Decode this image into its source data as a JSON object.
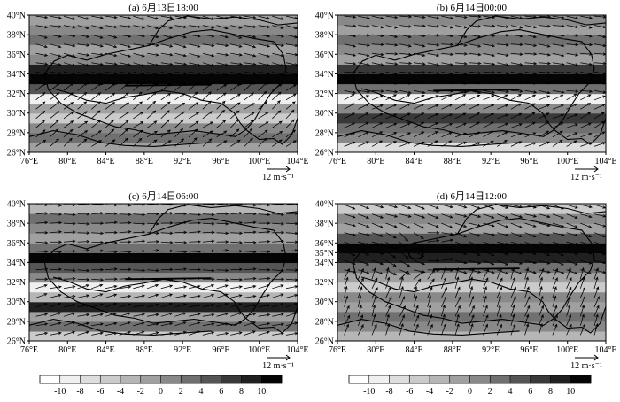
{
  "chart_data": [
    {
      "type": "heatmap",
      "panel": "a",
      "title": "(a) 6月13日18:00",
      "x_ticks": [
        "76°E",
        "80°E",
        "84°E",
        "88°E",
        "92°E",
        "96°E",
        "100°E",
        "104°E"
      ],
      "y_ticks": [
        "26°N",
        "28°N",
        "30°N",
        "32°N",
        "34°N",
        "36°N",
        "38°N",
        "40°N"
      ],
      "xlim": [
        76,
        104
      ],
      "ylim": [
        26,
        40
      ],
      "reference_vector": {
        "label": "12 m·s⁻¹",
        "value": 12
      },
      "rows": [
        {
          "lat": 26.5,
          "value": -2
        },
        {
          "lat": 27.5,
          "value": 2
        },
        {
          "lat": 28.5,
          "value": 0
        },
        {
          "lat": 29.5,
          "value": -6
        },
        {
          "lat": 30.5,
          "value": -2
        },
        {
          "lat": 31.5,
          "value": -10
        },
        {
          "lat": 32.5,
          "value": 4
        },
        {
          "lat": 33.5,
          "value": 10
        },
        {
          "lat": 34.5,
          "value": 8
        },
        {
          "lat": 35.5,
          "value": 0
        },
        {
          "lat": 36.5,
          "value": -2
        },
        {
          "lat": 37.5,
          "value": 2
        },
        {
          "lat": 38.5,
          "value": 0
        },
        {
          "lat": 39.5,
          "value": -2
        }
      ],
      "wind": {
        "north_u": 1.0,
        "north_v": -0.22,
        "south_u": 0.7,
        "south_v": 0.55,
        "split_lat": 32.5
      }
    },
    {
      "type": "heatmap",
      "panel": "b",
      "title": "(b) 6月14日00:00",
      "x_ticks": [
        "76°E",
        "80°E",
        "84°E",
        "88°E",
        "92°E",
        "96°E",
        "100°E",
        "104°E"
      ],
      "y_ticks": [
        "26°N",
        "28°N",
        "30°N",
        "32°N",
        "34°N",
        "36°N",
        "38°N",
        "40°N"
      ],
      "xlim": [
        76,
        104
      ],
      "ylim": [
        26,
        40
      ],
      "reference_vector": {
        "label": "12 m·s⁻¹",
        "value": 12
      },
      "rows": [
        {
          "lat": 26.5,
          "value": -8
        },
        {
          "lat": 27.5,
          "value": 0
        },
        {
          "lat": 28.5,
          "value": 2
        },
        {
          "lat": 29.5,
          "value": 6
        },
        {
          "lat": 30.5,
          "value": 0
        },
        {
          "lat": 31.5,
          "value": -10
        },
        {
          "lat": 32.5,
          "value": 2
        },
        {
          "lat": 33.5,
          "value": 10
        },
        {
          "lat": 34.5,
          "value": 6
        },
        {
          "lat": 35.5,
          "value": -2
        },
        {
          "lat": 36.5,
          "value": 0
        },
        {
          "lat": 37.5,
          "value": 2
        },
        {
          "lat": 38.5,
          "value": -2
        },
        {
          "lat": 39.5,
          "value": 0
        }
      ],
      "wind": {
        "north_u": 1.0,
        "north_v": -0.15,
        "south_u": 0.85,
        "south_v": 0.4,
        "split_lat": 32.0
      }
    },
    {
      "type": "heatmap",
      "panel": "c",
      "title": "(c) 6月14日06:00",
      "x_ticks": [
        "76°E",
        "80°E",
        "84°E",
        "88°E",
        "92°E",
        "96°E",
        "100°E",
        "104°E"
      ],
      "y_ticks": [
        "26°N",
        "28°N",
        "30°N",
        "32°N",
        "34°N",
        "36°N",
        "38°N",
        "40°N"
      ],
      "xlim": [
        76,
        104
      ],
      "ylim": [
        26,
        40
      ],
      "reference_vector": {
        "label": "12 m·s⁻¹",
        "value": 12
      },
      "rows": [
        {
          "lat": 26.5,
          "value": -6
        },
        {
          "lat": 27.5,
          "value": 2
        },
        {
          "lat": 28.5,
          "value": -2
        },
        {
          "lat": 29.5,
          "value": 8
        },
        {
          "lat": 30.5,
          "value": -4
        },
        {
          "lat": 31.5,
          "value": -10
        },
        {
          "lat": 32.5,
          "value": 0
        },
        {
          "lat": 33.5,
          "value": 4
        },
        {
          "lat": 34.5,
          "value": 10
        },
        {
          "lat": 35.5,
          "value": 2
        },
        {
          "lat": 36.5,
          "value": -2
        },
        {
          "lat": 37.5,
          "value": 0
        },
        {
          "lat": 38.5,
          "value": 2
        },
        {
          "lat": 39.5,
          "value": -4
        }
      ],
      "wind": {
        "north_u": 1.0,
        "north_v": 0.0,
        "south_u": 1.0,
        "south_v": 0.25,
        "split_lat": 32.0
      }
    },
    {
      "type": "heatmap",
      "panel": "d",
      "title": "(d) 6月14日12:00",
      "x_ticks": [
        "76°E",
        "80°E",
        "84°E",
        "88°E",
        "92°E",
        "96°E",
        "100°E",
        "104°E"
      ],
      "y_ticks": [
        "26°N",
        "28°N",
        "30°N",
        "32°N",
        "34°N",
        "35°N",
        "36°N",
        "38°N",
        "40°N"
      ],
      "xlim": [
        76,
        104
      ],
      "ylim": [
        26,
        40
      ],
      "reference_vector": {
        "label": "12 m·s⁻¹",
        "value": 12
      },
      "rows": [
        {
          "lat": 26.5,
          "value": -4
        },
        {
          "lat": 27.5,
          "value": 0
        },
        {
          "lat": 28.5,
          "value": 2
        },
        {
          "lat": 29.5,
          "value": -2
        },
        {
          "lat": 30.5,
          "value": 0
        },
        {
          "lat": 31.5,
          "value": -6
        },
        {
          "lat": 32.5,
          "value": -2
        },
        {
          "lat": 33.5,
          "value": 2
        },
        {
          "lat": 34.5,
          "value": 8
        },
        {
          "lat": 35.5,
          "value": 10
        },
        {
          "lat": 36.5,
          "value": 4
        },
        {
          "lat": 37.5,
          "value": -2
        },
        {
          "lat": 38.5,
          "value": 0
        },
        {
          "lat": 39.5,
          "value": -6
        }
      ],
      "wind": {
        "north_u": 0.95,
        "north_v": -0.3,
        "south_u": 0.3,
        "south_v": 0.8,
        "split_lat": 33.0
      },
      "vortex": {
        "lon": 84.2,
        "lat": 34.9
      }
    }
  ],
  "colorbar": {
    "ticks": [
      "-10",
      "-8",
      "-6",
      "-4",
      "-2",
      "0",
      "2",
      "4",
      "6",
      "8",
      "10"
    ],
    "colors": [
      "#ffffff",
      "#f0f0f0",
      "#dedede",
      "#cbcbcb",
      "#b6b6b6",
      "#a0a0a0",
      "#898989",
      "#707070",
      "#555555",
      "#393939",
      "#202020",
      "#050505"
    ]
  },
  "plateau_border": [
    [
      80,
      35.9
    ],
    [
      82,
      35.4
    ],
    [
      84,
      36.0
    ],
    [
      86.5,
      36.5
    ],
    [
      88.5,
      36.9
    ],
    [
      90.5,
      37.6
    ],
    [
      93,
      38.3
    ],
    [
      95,
      38.5
    ],
    [
      97.5,
      38.0
    ],
    [
      99.5,
      37.6
    ],
    [
      101.5,
      37.3
    ],
    [
      102.5,
      36.0
    ],
    [
      102.8,
      34.5
    ],
    [
      102.4,
      33.2
    ],
    [
      101.2,
      32.0
    ],
    [
      100.2,
      30.5
    ],
    [
      99.5,
      29.3
    ],
    [
      98.6,
      28.3
    ],
    [
      97.5,
      27.6
    ],
    [
      95.5,
      27.9
    ],
    [
      93.2,
      28.2
    ],
    [
      91,
      28.0
    ],
    [
      89,
      27.8
    ],
    [
      87,
      28.3
    ],
    [
      85,
      28.6
    ],
    [
      83,
      29.3
    ],
    [
      81,
      30.0
    ],
    [
      79.3,
      31.0
    ],
    [
      78,
      32.4
    ],
    [
      77.6,
      34.0
    ],
    [
      78.6,
      35.3
    ],
    [
      80,
      35.9
    ]
  ],
  "inner_border": [
    [
      78.5,
      32.5
    ],
    [
      80,
      32.1
    ],
    [
      82,
      31.3
    ],
    [
      84,
      31.0
    ],
    [
      86,
      31.6
    ],
    [
      88,
      31.9
    ],
    [
      90,
      32.3
    ],
    [
      92,
      32.0
    ],
    [
      94,
      31.3
    ],
    [
      96,
      31.0
    ]
  ],
  "north_border": [
    [
      88.5,
      36.9
    ],
    [
      89.5,
      38.5
    ],
    [
      90.5,
      39.4
    ],
    [
      92.5,
      39.9
    ],
    [
      95,
      39.6
    ],
    [
      97.5,
      39.8
    ],
    [
      100,
      39.5
    ],
    [
      102,
      39.0
    ],
    [
      104,
      39.2
    ]
  ],
  "south_border": [
    [
      76,
      27.6
    ],
    [
      78.5,
      28.2
    ],
    [
      81,
      27.8
    ],
    [
      83.5,
      27.0
    ],
    [
      86,
      26.7
    ],
    [
      89,
      26.6
    ],
    [
      92,
      26.8
    ],
    [
      95,
      27.0
    ]
  ],
  "east_border": [
    [
      96,
      31.0
    ],
    [
      97.4,
      30.0
    ],
    [
      98.0,
      29.0
    ],
    [
      98.6,
      28.3
    ],
    [
      100,
      27.3
    ],
    [
      101.5,
      27.4
    ],
    [
      102.4,
      26.8
    ],
    [
      103.4,
      27.8
    ],
    [
      104,
      29.5
    ]
  ]
}
